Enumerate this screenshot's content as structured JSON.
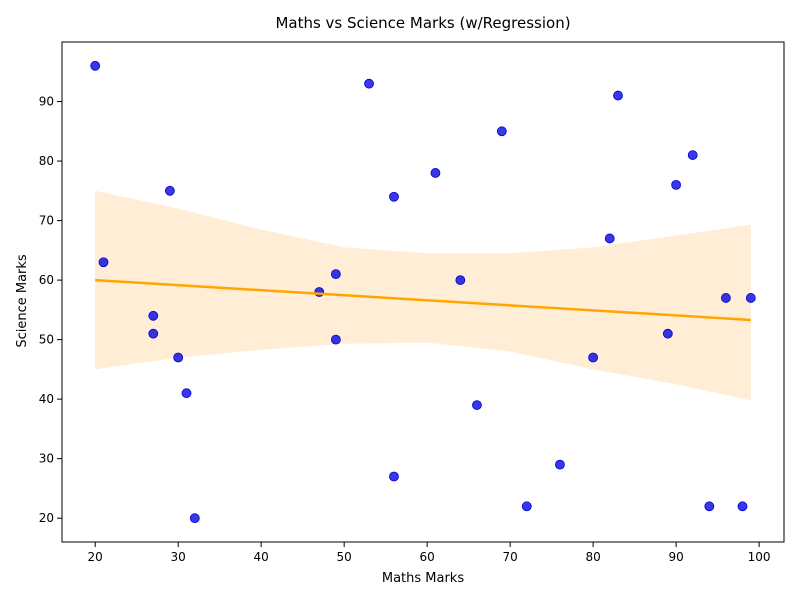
{
  "chart_data": {
    "type": "scatter",
    "title": "Maths vs Science Marks (w/Regression)",
    "xlabel": "Maths Marks",
    "ylabel": "Science Marks",
    "xlim": [
      16,
      103
    ],
    "ylim": [
      16,
      100
    ],
    "xticks": [
      20,
      30,
      40,
      50,
      60,
      70,
      80,
      90,
      100
    ],
    "yticks": [
      20,
      30,
      40,
      50,
      60,
      70,
      80,
      90
    ],
    "points": [
      {
        "x": 20,
        "y": 96
      },
      {
        "x": 21,
        "y": 63
      },
      {
        "x": 27,
        "y": 54
      },
      {
        "x": 27,
        "y": 51
      },
      {
        "x": 29,
        "y": 75
      },
      {
        "x": 30,
        "y": 47
      },
      {
        "x": 31,
        "y": 41
      },
      {
        "x": 32,
        "y": 20
      },
      {
        "x": 47,
        "y": 58
      },
      {
        "x": 49,
        "y": 61
      },
      {
        "x": 49,
        "y": 50
      },
      {
        "x": 53,
        "y": 93
      },
      {
        "x": 56,
        "y": 74
      },
      {
        "x": 56,
        "y": 27
      },
      {
        "x": 61,
        "y": 78
      },
      {
        "x": 64,
        "y": 60
      },
      {
        "x": 66,
        "y": 39
      },
      {
        "x": 69,
        "y": 85
      },
      {
        "x": 72,
        "y": 22
      },
      {
        "x": 76,
        "y": 29
      },
      {
        "x": 80,
        "y": 47
      },
      {
        "x": 82,
        "y": 67
      },
      {
        "x": 83,
        "y": 91
      },
      {
        "x": 89,
        "y": 51
      },
      {
        "x": 90,
        "y": 76
      },
      {
        "x": 92,
        "y": 81
      },
      {
        "x": 94,
        "y": 22
      },
      {
        "x": 96,
        "y": 57
      },
      {
        "x": 98,
        "y": 22
      },
      {
        "x": 99,
        "y": 57
      }
    ],
    "regression": {
      "x": [
        20,
        99
      ],
      "y": [
        60.0,
        53.3
      ]
    },
    "confidence_band": {
      "x": [
        20,
        30,
        40,
        50,
        60,
        70,
        80,
        90,
        99
      ],
      "upper": [
        75.0,
        72.0,
        68.5,
        65.5,
        64.5,
        64.5,
        65.5,
        67.5,
        69.3
      ],
      "lower": [
        45.0,
        47.0,
        48.3,
        49.3,
        49.5,
        48.0,
        45.0,
        42.5,
        39.8
      ]
    },
    "colors": {
      "points": "#0000dd",
      "regression": "#ffa500",
      "band": "#ffedd6"
    },
    "grid": false,
    "legend": "none"
  }
}
